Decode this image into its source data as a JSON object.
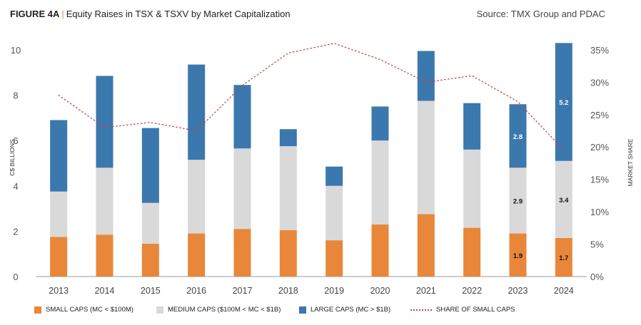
{
  "header": {
    "figure_label": "FIGURE 4A",
    "separator": "|",
    "title": "Equity Raises in TSX & TSXV by Market Capitalization",
    "source": "Source: TMX Group and PDAC"
  },
  "colors": {
    "small": "#e8873a",
    "medium": "#d9d9d9",
    "large": "#3b78ad",
    "share_line": "#c0474a"
  },
  "chart_data": {
    "type": "bar",
    "stacked": true,
    "categories": [
      "2013",
      "2014",
      "2015",
      "2016",
      "2017",
      "2018",
      "2019",
      "2020",
      "2021",
      "2022",
      "2023",
      "2024"
    ],
    "series": [
      {
        "name": "SMALL CAPS (MC < $100M)",
        "values": [
          1.75,
          1.85,
          1.45,
          1.9,
          2.1,
          2.05,
          1.6,
          2.3,
          2.75,
          2.15,
          1.9,
          1.7
        ]
      },
      {
        "name": "MEDIUM CAPS ($100M < MC < $1B)",
        "values": [
          2.0,
          2.95,
          1.8,
          3.25,
          3.55,
          3.7,
          2.4,
          3.7,
          5.0,
          3.45,
          2.9,
          3.4
        ]
      },
      {
        "name": "LARGE CAPS (MC > $1B)",
        "values": [
          3.15,
          4.05,
          3.3,
          4.2,
          2.8,
          0.75,
          0.85,
          1.5,
          2.2,
          2.05,
          2.8,
          5.2
        ]
      }
    ],
    "line_series": {
      "name": "SHARE OF SMALL CAPS",
      "axis": "right",
      "values": [
        28,
        23,
        23.8,
        22.5,
        29.5,
        34.5,
        36,
        33.5,
        30,
        31,
        27,
        19.5
      ]
    },
    "ylabel": "C$ BILLIONS",
    "y2label": "MARKET SHARE",
    "ylim": [
      0,
      10.5
    ],
    "y2lim": [
      0,
      36.75
    ],
    "yticks": [
      "0",
      "2",
      "4",
      "6",
      "8",
      "10"
    ],
    "y2ticks": [
      "0%",
      "5%",
      "10%",
      "15%",
      "20%",
      "25%",
      "30%",
      "35%"
    ],
    "data_labels": [
      {
        "category": "2023",
        "series": "SMALL CAPS (MC < $100M)",
        "text": "1.9"
      },
      {
        "category": "2023",
        "series": "MEDIUM CAPS ($100M < MC < $1B)",
        "text": "2.9"
      },
      {
        "category": "2023",
        "series": "LARGE CAPS (MC > $1B)",
        "text": "2.8"
      },
      {
        "category": "2024",
        "series": "SMALL CAPS (MC < $100M)",
        "text": "1.7"
      },
      {
        "category": "2024",
        "series": "MEDIUM CAPS ($100M < MC < $1B)",
        "text": "3.4"
      },
      {
        "category": "2024",
        "series": "LARGE CAPS (MC > $1B)",
        "text": "5.2"
      }
    ],
    "grid": false,
    "legend": "bottom"
  }
}
